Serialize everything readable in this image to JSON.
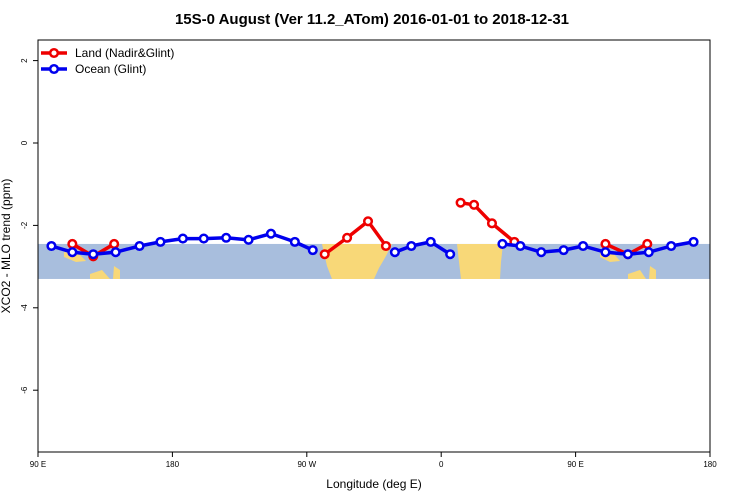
{
  "chart_data": {
    "type": "line",
    "title": "15S-0 August (Ver 11.2_ATom)   2016-01-01 to 2018-12-31",
    "xlabel": "Longitude (deg E)",
    "ylabel": "XCO2 - MLO trend (ppm)",
    "xlim": [
      90,
      540
    ],
    "ylim": [
      -7.5,
      2.5
    ],
    "x_ticks": [
      {
        "value": 90,
        "label": "90 E"
      },
      {
        "value": 180,
        "label": "180"
      },
      {
        "value": 270,
        "label": "90 W"
      },
      {
        "value": 360,
        "label": "0"
      },
      {
        "value": 450,
        "label": "90 E"
      },
      {
        "value": 540,
        "label": "180"
      }
    ],
    "y_ticks": [
      {
        "value": 2,
        "label": "2"
      },
      {
        "value": 0,
        "label": "0"
      },
      {
        "value": -2,
        "label": "-2"
      },
      {
        "value": -4,
        "label": "-4"
      },
      {
        "value": -6,
        "label": "-6"
      }
    ],
    "map_band": {
      "lat_top": 0,
      "lat_bottom": -15,
      "y_top": -2.45,
      "y_bottom": -3.3,
      "ocean_color": "#a8bedd",
      "land_color": "#f8d878"
    },
    "legend": {
      "position": "top-left"
    },
    "series": [
      {
        "name": "Land (Nadir&Glint)",
        "color": "#ee0000",
        "points": [
          {
            "gap": true
          },
          {
            "x": 113,
            "y": -2.45
          },
          {
            "x": 127,
            "y": -2.75
          },
          {
            "x": 141,
            "y": -2.45
          },
          {
            "gap": true
          },
          {
            "x": 282,
            "y": -2.7
          },
          {
            "x": 297,
            "y": -2.3
          },
          {
            "x": 311,
            "y": -1.9
          },
          {
            "x": 323,
            "y": -2.5
          },
          {
            "gap": true
          },
          {
            "x": 373,
            "y": -1.45
          },
          {
            "x": 382,
            "y": -1.5
          },
          {
            "x": 394,
            "y": -1.95
          },
          {
            "x": 409,
            "y": -2.4
          },
          {
            "gap": true
          },
          {
            "x": 470,
            "y": -2.45
          },
          {
            "x": 485,
            "y": -2.7
          },
          {
            "x": 498,
            "y": -2.45
          }
        ]
      },
      {
        "name": "Ocean (Glint)",
        "color": "#0000ee",
        "points": [
          {
            "x": 99,
            "y": -2.5
          },
          {
            "x": 113,
            "y": -2.65
          },
          {
            "x": 127,
            "y": -2.7
          },
          {
            "x": 142,
            "y": -2.65
          },
          {
            "x": 158,
            "y": -2.5
          },
          {
            "x": 172,
            "y": -2.4
          },
          {
            "x": 187,
            "y": -2.32
          },
          {
            "x": 201,
            "y": -2.32
          },
          {
            "x": 216,
            "y": -2.3
          },
          {
            "x": 231,
            "y": -2.35
          },
          {
            "x": 246,
            "y": -2.2
          },
          {
            "x": 262,
            "y": -2.4
          },
          {
            "x": 274,
            "y": -2.6
          },
          {
            "gap": true
          },
          {
            "x": 329,
            "y": -2.65
          },
          {
            "x": 340,
            "y": -2.5
          },
          {
            "x": 353,
            "y": -2.4
          },
          {
            "x": 366,
            "y": -2.7
          },
          {
            "gap": true
          },
          {
            "x": 401,
            "y": -2.45
          },
          {
            "x": 413,
            "y": -2.5
          },
          {
            "x": 427,
            "y": -2.65
          },
          {
            "x": 442,
            "y": -2.6
          },
          {
            "x": 455,
            "y": -2.5
          },
          {
            "x": 470,
            "y": -2.65
          },
          {
            "x": 485,
            "y": -2.7
          },
          {
            "x": 499,
            "y": -2.65
          },
          {
            "x": 514,
            "y": -2.5
          },
          {
            "x": 529,
            "y": -2.4
          }
        ]
      }
    ]
  }
}
